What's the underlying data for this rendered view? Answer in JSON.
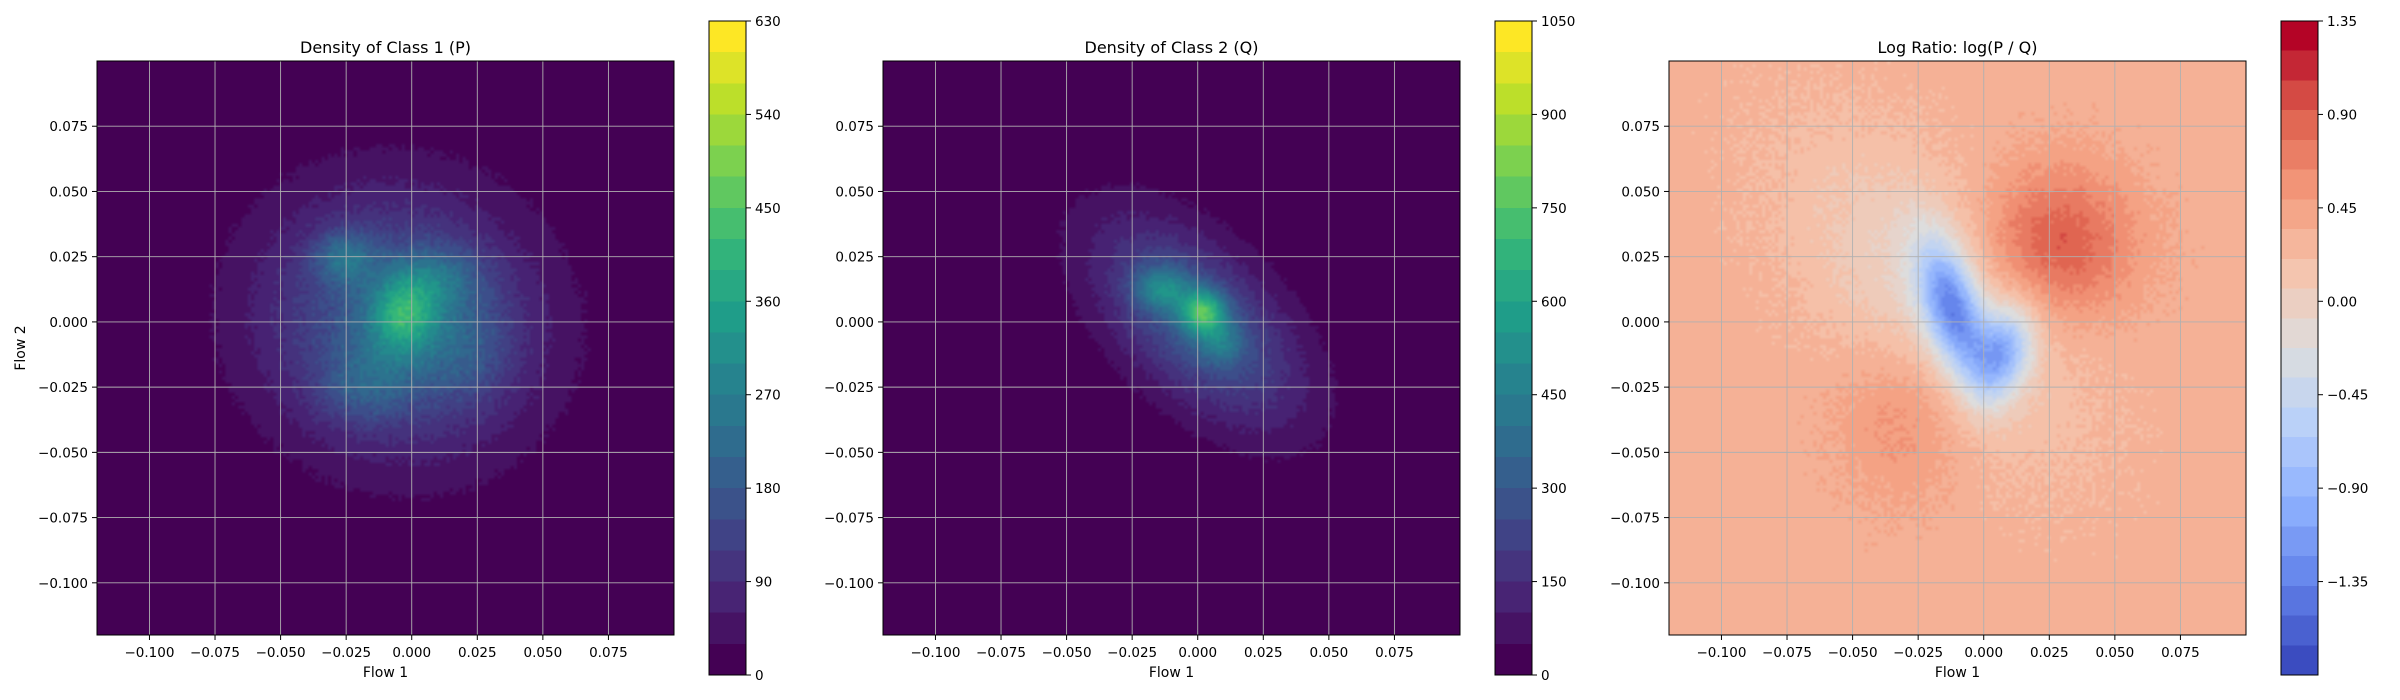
{
  "figure": {
    "background": "#ffffff",
    "grid_color": "#b0b0b0"
  },
  "chart_data": [
    {
      "type": "heatmap",
      "title": "Density of Class 1 (P)",
      "xlabel": "Flow 1",
      "ylabel": "Flow 2",
      "xlim": [
        -0.12,
        0.1
      ],
      "ylim": [
        -0.12,
        0.1
      ],
      "xticks": [
        -0.1,
        -0.075,
        -0.05,
        -0.025,
        0.0,
        0.025,
        0.05,
        0.075
      ],
      "xtick_labels": [
        "−0.100",
        "−0.075",
        "−0.050",
        "−0.025",
        "0.000",
        "0.025",
        "0.050",
        "0.075"
      ],
      "yticks": [
        -0.1,
        -0.075,
        -0.05,
        -0.025,
        0.0,
        0.025,
        0.05,
        0.075
      ],
      "ytick_labels": [
        "−0.100",
        "−0.075",
        "−0.050",
        "−0.025",
        "0.000",
        "0.025",
        "0.050",
        "0.075"
      ],
      "grid": true,
      "colormap": "viridis",
      "colorbar": {
        "range": [
          0,
          630
        ],
        "ticks": [
          0,
          90,
          180,
          270,
          360,
          450,
          540,
          630
        ],
        "tick_labels": [
          "0",
          "90",
          "180",
          "270",
          "360",
          "450",
          "540",
          "630"
        ]
      },
      "blobs": [
        {
          "x": -0.005,
          "y": 0.0,
          "sx": 0.036,
          "sy": 0.034,
          "rho": -0.05,
          "peak": 210
        },
        {
          "x": -0.003,
          "y": 0.003,
          "sx": 0.009,
          "sy": 0.011,
          "rho": 0.1,
          "peak": 230
        },
        {
          "x": -0.026,
          "y": 0.025,
          "sx": 0.008,
          "sy": 0.007,
          "rho": 0.0,
          "peak": 130
        },
        {
          "x": 0.012,
          "y": 0.017,
          "sx": 0.011,
          "sy": 0.008,
          "rho": 0.0,
          "peak": 90
        },
        {
          "x": -0.018,
          "y": -0.025,
          "sx": 0.012,
          "sy": 0.01,
          "rho": 0.0,
          "peak": 80
        },
        {
          "x": 0.02,
          "y": -0.01,
          "sx": 0.012,
          "sy": 0.014,
          "rho": 0.0,
          "peak": 60
        }
      ]
    },
    {
      "type": "heatmap",
      "title": "Density of Class 2 (Q)",
      "xlabel": "Flow 1",
      "ylabel": "",
      "xlim": [
        -0.12,
        0.1
      ],
      "ylim": [
        -0.12,
        0.1
      ],
      "xticks": [
        -0.1,
        -0.075,
        -0.05,
        -0.025,
        0.0,
        0.025,
        0.05,
        0.075
      ],
      "xtick_labels": [
        "−0.100",
        "−0.075",
        "−0.050",
        "−0.025",
        "0.000",
        "0.025",
        "0.050",
        "0.075"
      ],
      "yticks": [
        -0.1,
        -0.075,
        -0.05,
        -0.025,
        0.0,
        0.025,
        0.05,
        0.075
      ],
      "ytick_labels": [
        "−0.100",
        "−0.075",
        "−0.050",
        "−0.025",
        "0.000",
        "0.025",
        "0.050",
        "0.075"
      ],
      "grid": true,
      "colormap": "viridis",
      "colorbar": {
        "range": [
          0,
          1050
        ],
        "ticks": [
          0,
          150,
          300,
          450,
          600,
          750,
          900,
          1050
        ],
        "tick_labels": [
          "0",
          "150",
          "300",
          "450",
          "600",
          "750",
          "900",
          "1050"
        ]
      },
      "blobs": [
        {
          "x": 0.0,
          "y": 0.0,
          "sx": 0.027,
          "sy": 0.027,
          "rho": -0.55,
          "peak": 330
        },
        {
          "x": 0.002,
          "y": 0.004,
          "sx": 0.006,
          "sy": 0.006,
          "rho": 0.0,
          "peak": 480
        },
        {
          "x": -0.014,
          "y": 0.013,
          "sx": 0.007,
          "sy": 0.006,
          "rho": 0.0,
          "peak": 280
        },
        {
          "x": 0.009,
          "y": -0.008,
          "sx": 0.006,
          "sy": 0.006,
          "rho": 0.0,
          "peak": 180
        }
      ]
    },
    {
      "type": "heatmap",
      "title": "Log Ratio: log(P / Q)",
      "xlabel": "Flow 1",
      "ylabel": "",
      "xlim": [
        -0.12,
        0.1
      ],
      "ylim": [
        -0.12,
        0.1
      ],
      "xticks": [
        -0.1,
        -0.075,
        -0.05,
        -0.025,
        0.0,
        0.025,
        0.05,
        0.075
      ],
      "xtick_labels": [
        "−0.100",
        "−0.075",
        "−0.050",
        "−0.025",
        "0.000",
        "0.025",
        "0.050",
        "0.075"
      ],
      "yticks": [
        -0.1,
        -0.075,
        -0.05,
        -0.025,
        0.0,
        0.025,
        0.05,
        0.075
      ],
      "ytick_labels": [
        "−0.100",
        "−0.075",
        "−0.050",
        "−0.025",
        "0.000",
        "0.025",
        "0.050",
        "0.075"
      ],
      "grid": true,
      "colormap": "coolwarm",
      "colorbar": {
        "range": [
          -1.8,
          1.35
        ],
        "ticks": [
          -1.35,
          -0.9,
          -0.45,
          0.0,
          0.45,
          0.9,
          1.35
        ],
        "tick_labels": [
          "−1.35",
          "−0.90",
          "−0.45",
          "0.00",
          "0.45",
          "0.90",
          "1.35"
        ]
      },
      "base_value": 0.42,
      "blobs": [
        {
          "x": -0.012,
          "y": 0.005,
          "sx": 0.009,
          "sy": 0.018,
          "rho": -0.5,
          "peak": -1.45
        },
        {
          "x": 0.007,
          "y": -0.012,
          "sx": 0.008,
          "sy": 0.012,
          "rho": 0.3,
          "peak": -1.1
        },
        {
          "x": -0.02,
          "y": 0.01,
          "sx": 0.035,
          "sy": 0.04,
          "rho": -0.55,
          "peak": -0.4
        },
        {
          "x": 0.028,
          "y": 0.03,
          "sx": 0.02,
          "sy": 0.02,
          "rho": 0.0,
          "peak": 0.65
        },
        {
          "x": -0.03,
          "y": -0.035,
          "sx": 0.018,
          "sy": 0.022,
          "rho": 0.0,
          "peak": 0.3
        }
      ]
    }
  ]
}
